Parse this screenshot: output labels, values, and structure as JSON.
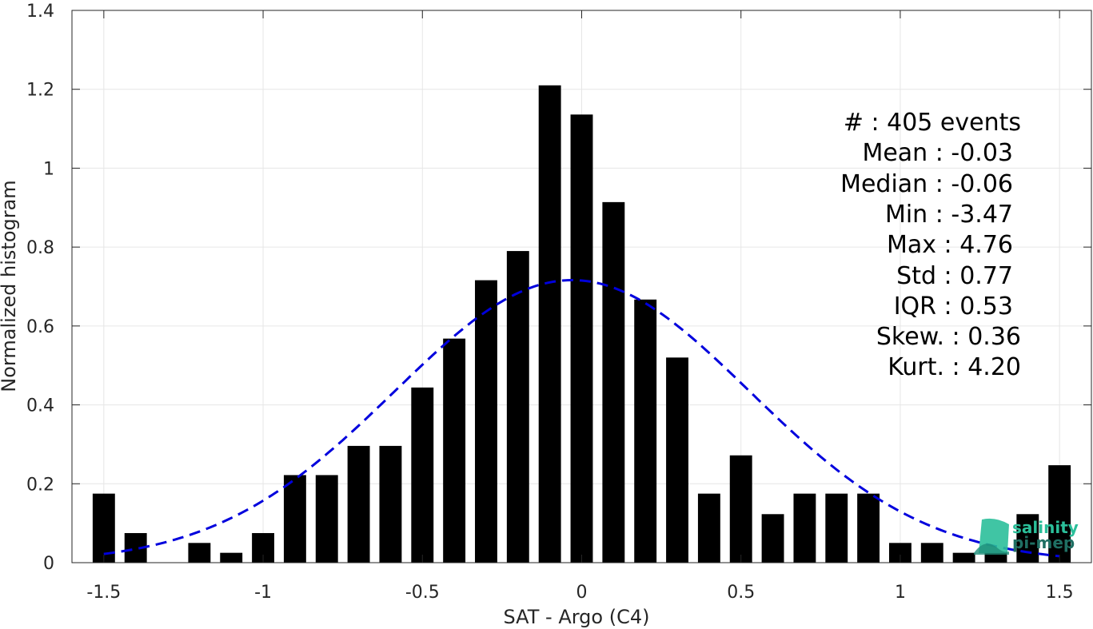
{
  "chart_data": {
    "type": "bar",
    "xlabel": "SAT - Argo (C4)",
    "ylabel": "Normalized histogram",
    "xlim": [
      -1.6,
      1.6
    ],
    "ylim": [
      0,
      1.4
    ],
    "x_ticks": [
      "-1.5",
      "-1",
      "-0.5",
      "0",
      "0.5",
      "1",
      "1.5"
    ],
    "x_tick_values": [
      -1.5,
      -1,
      -0.5,
      0,
      0.5,
      1,
      1.5
    ],
    "y_ticks": [
      "0",
      "0.2",
      "0.4",
      "0.6",
      "0.8",
      "1",
      "1.2",
      "1.4"
    ],
    "y_tick_values": [
      0,
      0.2,
      0.4,
      0.6,
      0.8,
      1,
      1.2,
      1.4
    ],
    "grid": true,
    "bar_color": "#000000",
    "bin_width": 0.1,
    "x": [
      -1.5,
      -1.4,
      -1.3,
      -1.2,
      -1.1,
      -1.0,
      -0.9,
      -0.8,
      -0.7,
      -0.6,
      -0.5,
      -0.4,
      -0.3,
      -0.2,
      -0.1,
      0.0,
      0.1,
      0.2,
      0.3,
      0.4,
      0.5,
      0.6,
      0.7,
      0.8,
      0.9,
      1.0,
      1.1,
      1.2,
      1.3,
      1.4,
      1.5
    ],
    "values": [
      0.175,
      0.075,
      0.0,
      0.05,
      0.025,
      0.075,
      0.222,
      0.222,
      0.296,
      0.296,
      0.444,
      0.568,
      0.716,
      0.79,
      1.21,
      1.136,
      0.914,
      0.667,
      0.52,
      0.175,
      0.272,
      0.123,
      0.175,
      0.175,
      0.175,
      0.05,
      0.05,
      0.025,
      0.025,
      0.123,
      0.247
    ],
    "fit": {
      "type": "gaussian",
      "mean": -0.03,
      "std": 0.557,
      "color": "#0000dd",
      "style": "dashed",
      "x_range": [
        -1.5,
        1.5
      ]
    },
    "stats": [
      "#  : 405 events",
      "Mean : -0.03",
      "Median : -0.06",
      "Min : -3.47",
      "Max : 4.76",
      "Std : 0.77",
      "IQR : 0.53",
      "Skew. : 0.36",
      "Kurt. : 4.20"
    ]
  },
  "logo": {
    "line1": "salinity",
    "line2": "pi-mep",
    "color1": "#2bbf9a",
    "color2": "#1f6f63"
  }
}
